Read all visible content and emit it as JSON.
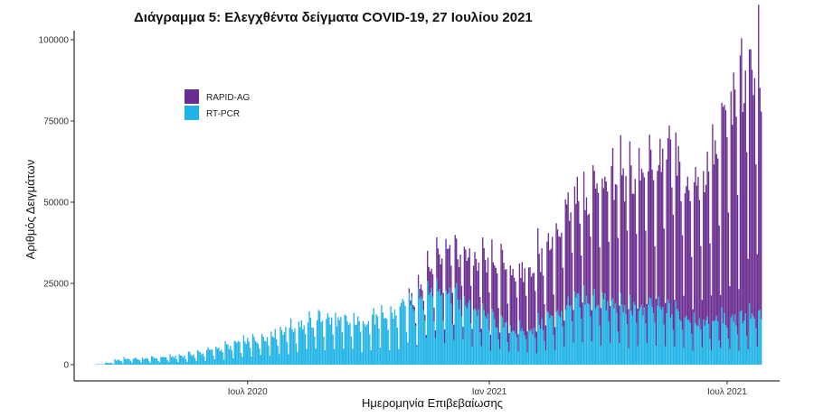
{
  "chart_data": {
    "type": "bar",
    "stacked": true,
    "title": "Διάγραμμα 5: Ελεγχθέντα δείγματα COVID-19, 27 Ιουλίου 2021",
    "xlabel": "Ημερομηνία Επιβεβαίωσης",
    "ylabel": "Αριθμός Δειγμάτων",
    "ylim": [
      0,
      100000
    ],
    "yticks": [
      0,
      25000,
      50000,
      75000,
      100000
    ],
    "ytick_labels": [
      "0",
      "25000",
      "50000",
      "75000",
      "100000"
    ],
    "xlim": [
      "2020-02-20",
      "2021-08-10"
    ],
    "xticks": [
      "2020-07-01",
      "2021-01-01",
      "2021-07-01"
    ],
    "xtick_labels": [
      "Ιουλ 2020",
      "Ιαν 2021",
      "Ιουλ 2021"
    ],
    "x_first": "2020-03-01",
    "x_last": "2021-07-27",
    "legend_position": "top-left",
    "grid": false,
    "series": [
      {
        "name": "RAPID-AG",
        "color": "#6a2c91",
        "weekly_values": [
          0,
          0,
          0,
          0,
          0,
          0,
          0,
          0,
          0,
          0,
          0,
          0,
          0,
          0,
          0,
          0,
          0,
          0,
          0,
          0,
          0,
          0,
          0,
          0,
          0,
          0,
          0,
          0,
          0,
          0,
          0,
          0,
          0,
          0,
          0,
          1500,
          3500,
          8000,
          12000,
          14000,
          15000,
          16000,
          16000,
          17000,
          18000,
          19000,
          19000,
          20000,
          21000,
          22000,
          24000,
          26000,
          30000,
          34000,
          36000,
          38000,
          41000,
          42000,
          42000,
          44000,
          45000,
          45000,
          48000,
          52000,
          48000,
          44000,
          45000,
          50000,
          56000,
          64000,
          72000,
          80000
        ]
      },
      {
        "name": "RT-PCR",
        "color": "#1fb3e6",
        "weekly_values": [
          0,
          150,
          600,
          1500,
          2000,
          2000,
          2000,
          2200,
          2500,
          2700,
          3000,
          3500,
          4000,
          4800,
          5500,
          6200,
          7000,
          7800,
          8500,
          9500,
          10500,
          11500,
          12500,
          13500,
          14500,
          15500,
          15000,
          14500,
          14000,
          14500,
          15000,
          15500,
          16000,
          17000,
          19000,
          21000,
          23000,
          24500,
          25000,
          24000,
          22000,
          20000,
          18000,
          16000,
          14500,
          13000,
          12000,
          11500,
          12000,
          13500,
          15500,
          17500,
          19500,
          21000,
          22000,
          21500,
          20500,
          19500,
          18500,
          18500,
          19000,
          19000,
          18500,
          18000,
          17000,
          16000,
          15000,
          14500,
          14500,
          15000,
          15500,
          16000
        ]
      }
    ]
  }
}
